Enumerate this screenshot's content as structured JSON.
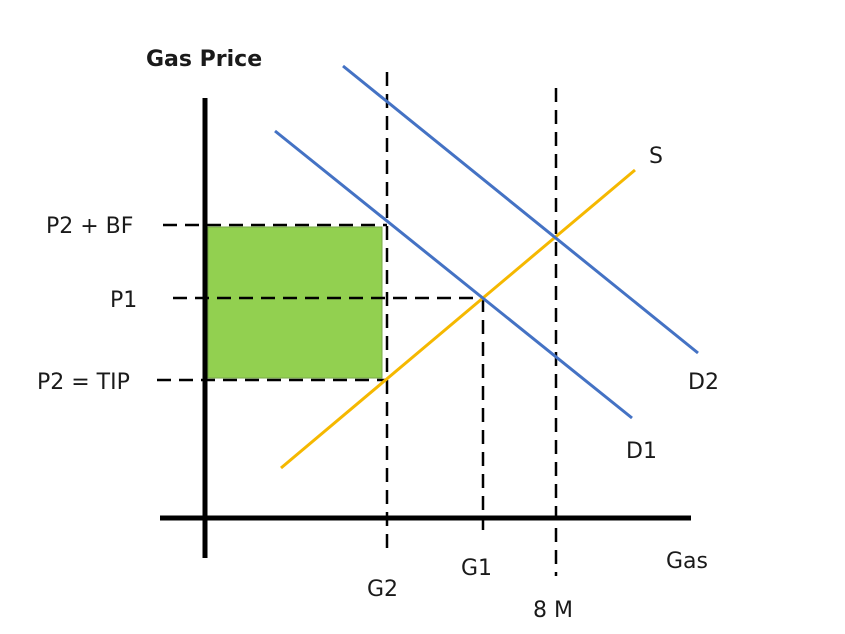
{
  "labels": {
    "y_axis": "Gas Price",
    "x_axis": "Gas",
    "price_levels": {
      "p2_bf": "P2 + BF",
      "p1": "P1",
      "p2_tip": "P2 = TIP"
    },
    "quantity_levels": {
      "g2": "G2",
      "g1": "G1",
      "eight_m": "8 M"
    },
    "curves": {
      "supply": "S",
      "demand1": "D1",
      "demand2": "D2"
    }
  },
  "colors": {
    "axes": "#000000",
    "supply": "#f5b800",
    "demand": "#4472c4",
    "shaded_area": "#92d050",
    "dashed": "#000000"
  }
}
